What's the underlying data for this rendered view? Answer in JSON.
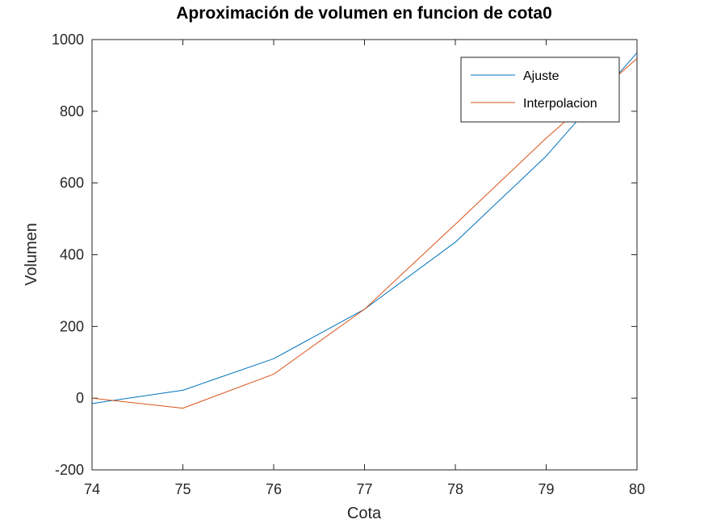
{
  "chart_data": {
    "type": "line",
    "title": "Aproximación de volumen en funcion de cota0",
    "xlabel": "Cota",
    "ylabel": "Volumen",
    "xlim": [
      74,
      80
    ],
    "ylim": [
      -200,
      1000
    ],
    "xticks": [
      74,
      75,
      76,
      77,
      78,
      79,
      80
    ],
    "yticks": [
      -200,
      0,
      200,
      400,
      600,
      800,
      1000
    ],
    "xtick_labels": [
      "74",
      "75",
      "76",
      "77",
      "78",
      "79",
      "80"
    ],
    "ytick_labels": [
      "-200",
      "0",
      "200",
      "400",
      "600",
      "800",
      "1000"
    ],
    "grid": false,
    "legend_position": "top-right",
    "series": [
      {
        "name": "Ajuste",
        "color": "#0072BD",
        "x": [
          74,
          75,
          76,
          77,
          78,
          79,
          80
        ],
        "y": [
          -15,
          22,
          110,
          248,
          435,
          675,
          963
        ]
      },
      {
        "name": "Interpolacion",
        "color": "#D95319",
        "x": [
          74,
          75,
          76,
          77,
          78,
          79,
          80
        ],
        "y": [
          0,
          -28,
          67,
          248,
          485,
          725,
          947
        ]
      }
    ]
  }
}
